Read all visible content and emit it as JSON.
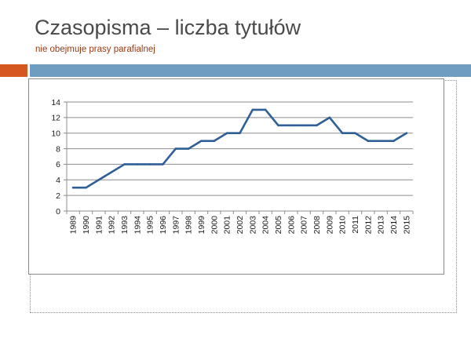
{
  "header": {
    "title": "Czasopisma – liczba tytułów",
    "subtitle": "nie obejmuje prasy parafialnej"
  },
  "colors": {
    "accent_orange": "#d5581e",
    "accent_blue": "#6f9dc1",
    "series_line": "#2e5f95",
    "gridline": "#8c8c8c"
  },
  "chart_data": {
    "type": "line",
    "title": "",
    "xlabel": "",
    "ylabel": "",
    "grid": true,
    "legend": "none",
    "ylim": [
      0,
      14
    ],
    "y_ticks": [
      0,
      2,
      4,
      6,
      8,
      10,
      12,
      14
    ],
    "x": [
      "1989",
      "1990",
      "1991",
      "1992",
      "1993",
      "1994",
      "1995",
      "1996",
      "1997",
      "1998",
      "1999",
      "2000",
      "2001",
      "2002",
      "2003",
      "2004",
      "2005",
      "2006",
      "2007",
      "2008",
      "2009",
      "2010",
      "2011",
      "2012",
      "2013",
      "2014",
      "2015"
    ],
    "series": [
      {
        "values": [
          3,
          3,
          4,
          5,
          6,
          6,
          6,
          6,
          8,
          8,
          9,
          9,
          10,
          10,
          13,
          13,
          11,
          11,
          11,
          11,
          12,
          10,
          10,
          9,
          9,
          9,
          10
        ]
      }
    ]
  }
}
